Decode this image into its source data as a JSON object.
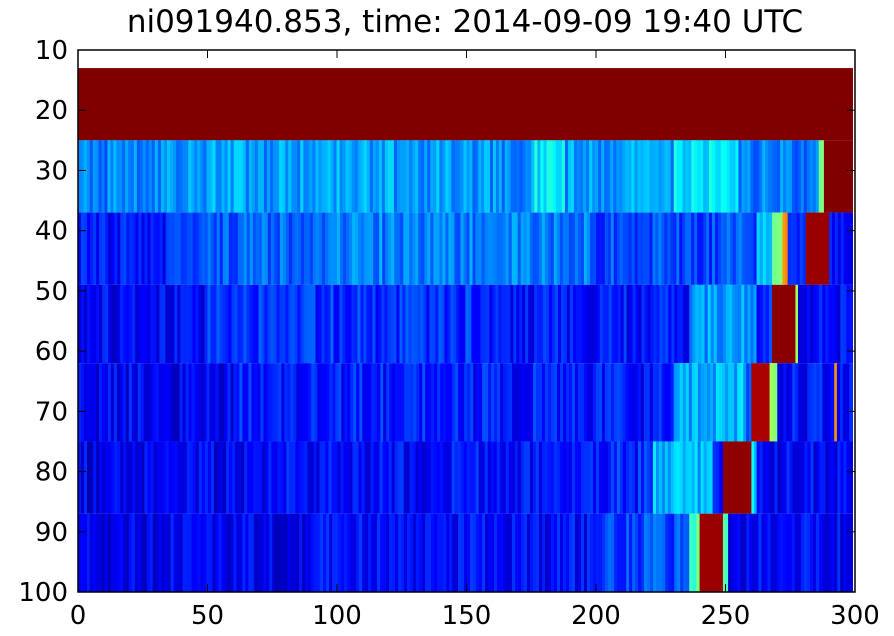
{
  "chart_data": {
    "type": "heatmap",
    "title": "ni091940.853, time: 2014-09-09 19:40 UTC",
    "xlabel": "",
    "ylabel": "",
    "xlim": [
      0,
      300
    ],
    "ylim": [
      100,
      10
    ],
    "y_inverted": true,
    "grid": false,
    "legend": "none",
    "colormap": "jet",
    "x_ticks": [
      0,
      50,
      100,
      150,
      200,
      250,
      300
    ],
    "y_ticks": [
      10,
      20,
      30,
      40,
      50,
      60,
      70,
      80,
      90,
      100
    ],
    "x_tick_labels": [
      "0",
      "50",
      "100",
      "150",
      "200",
      "250",
      "300"
    ],
    "y_tick_labels": [
      "10",
      "20",
      "30",
      "40",
      "50",
      "60",
      "70",
      "80",
      "90",
      "100"
    ],
    "rows": [
      {
        "y_range": [
          13,
          25
        ],
        "segments": [
          [
            0,
            299,
            1.0
          ]
        ]
      },
      {
        "y_range": [
          25,
          37
        ],
        "segments": [
          [
            0,
            25,
            0.25
          ],
          [
            25,
            80,
            0.28
          ],
          [
            80,
            150,
            0.28
          ],
          [
            150,
            175,
            0.27
          ],
          [
            175,
            188,
            0.36
          ],
          [
            188,
            230,
            0.28
          ],
          [
            230,
            255,
            0.36
          ],
          [
            255,
            286,
            0.25
          ],
          [
            286,
            288,
            0.5
          ],
          [
            288,
            299,
            1.0
          ]
        ]
      },
      {
        "y_range": [
          37,
          49
        ],
        "segments": [
          [
            0,
            35,
            0.14
          ],
          [
            35,
            100,
            0.22
          ],
          [
            100,
            200,
            0.25
          ],
          [
            200,
            262,
            0.2
          ],
          [
            262,
            268,
            0.3
          ],
          [
            268,
            272,
            0.55
          ],
          [
            272,
            274,
            0.72
          ],
          [
            274,
            281,
            0.2
          ],
          [
            281,
            290,
            0.95
          ],
          [
            290,
            299,
            0.13
          ]
        ]
      },
      {
        "y_range": [
          49,
          62
        ],
        "segments": [
          [
            0,
            50,
            0.12
          ],
          [
            50,
            160,
            0.17
          ],
          [
            160,
            236,
            0.14
          ],
          [
            236,
            262,
            0.28
          ],
          [
            262,
            268,
            0.15
          ],
          [
            268,
            277,
            0.98
          ],
          [
            277,
            278,
            0.5
          ],
          [
            278,
            299,
            0.13
          ]
        ]
      },
      {
        "y_range": [
          62,
          75
        ],
        "segments": [
          [
            0,
            60,
            0.12
          ],
          [
            60,
            200,
            0.15
          ],
          [
            200,
            230,
            0.14
          ],
          [
            230,
            258,
            0.3
          ],
          [
            258,
            260,
            0.22
          ],
          [
            260,
            267,
            0.92
          ],
          [
            267,
            270,
            0.55
          ],
          [
            270,
            292,
            0.14
          ],
          [
            292,
            293,
            0.72
          ],
          [
            293,
            299,
            0.13
          ]
        ]
      },
      {
        "y_range": [
          75,
          87
        ],
        "segments": [
          [
            0,
            70,
            0.11
          ],
          [
            70,
            200,
            0.13
          ],
          [
            200,
            222,
            0.16
          ],
          [
            222,
            245,
            0.3
          ],
          [
            245,
            249,
            0.15
          ],
          [
            249,
            260,
            0.97
          ],
          [
            260,
            262,
            0.35
          ],
          [
            262,
            299,
            0.12
          ]
        ]
      },
      {
        "y_range": [
          87,
          100
        ],
        "segments": [
          [
            0,
            90,
            0.11
          ],
          [
            90,
            200,
            0.13
          ],
          [
            200,
            236,
            0.2
          ],
          [
            236,
            240,
            0.45
          ],
          [
            240,
            249,
            0.95
          ],
          [
            249,
            251,
            0.5
          ],
          [
            251,
            299,
            0.12
          ]
        ]
      }
    ]
  }
}
